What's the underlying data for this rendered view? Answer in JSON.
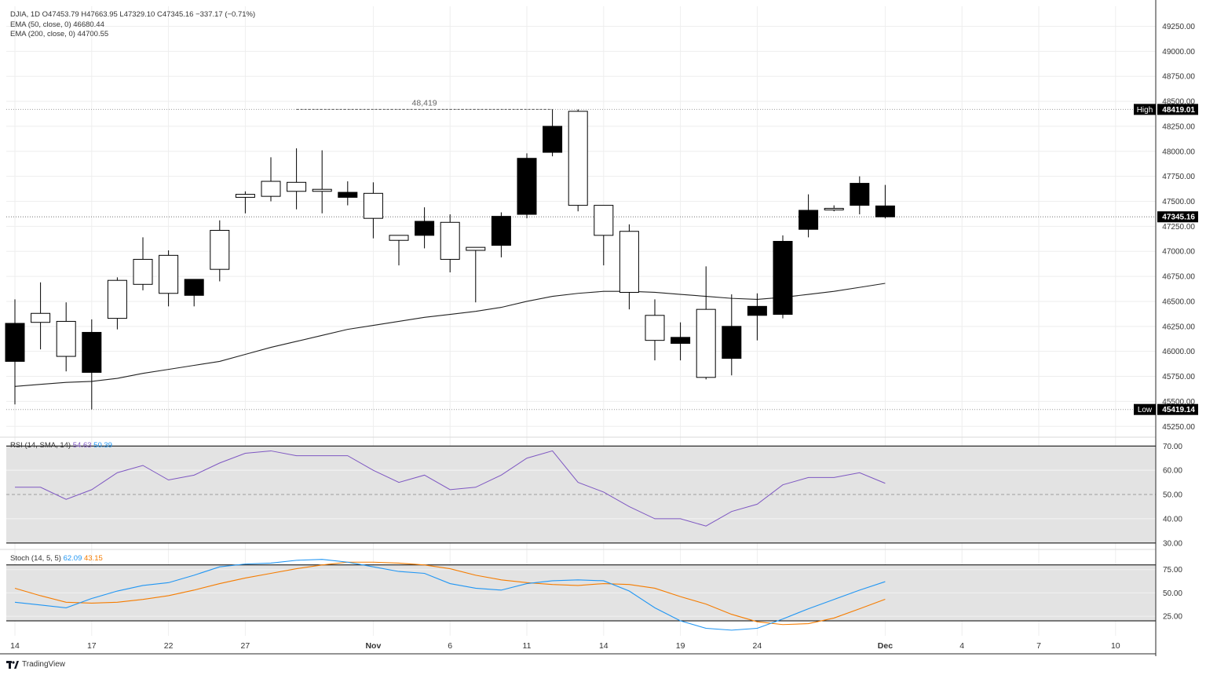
{
  "main_legend": {
    "symbol_line": "DJIA, 1D  O47453.79  H47663.95  L47329.10  C47345.16  −337.17 (−0.71%)",
    "ema50": "EMA (50, close, 0)  46680.44",
    "ema200": "EMA (200, close, 0)  44700.55"
  },
  "price_axis": {
    "ticks": [
      "49250.00",
      "49000.00",
      "48750.00",
      "48500.00",
      "48250.00",
      "48000.00",
      "47750.00",
      "47500.00",
      "47250.00",
      "47000.00",
      "46750.00",
      "46500.00",
      "46250.00",
      "46000.00",
      "45750.00",
      "45500.00",
      "45250.00"
    ],
    "high_label": "High",
    "high_value": "48419.01",
    "low_label": "Low",
    "low_value": "45419.14",
    "last_value": "47345.16",
    "high_marker_text": "48,419"
  },
  "rsi_legend": {
    "name": "RSI (14, SMA, 14)",
    "v1": "54.63",
    "v2": "50.39"
  },
  "rsi_axis": {
    "ticks": [
      "70.00",
      "60.00",
      "50.00",
      "40.00",
      "30.00"
    ]
  },
  "stoch_legend": {
    "name": "Stoch (14, 5, 5)",
    "v1": "62.09",
    "v2": "43.15"
  },
  "stoch_axis": {
    "ticks": [
      "75.00",
      "50.00",
      "25.00"
    ]
  },
  "time_axis": {
    "labels": [
      "14",
      "17",
      "22",
      "27",
      "Nov",
      "6",
      "11",
      "14",
      "19",
      "24",
      "Dec",
      "4",
      "7",
      "10"
    ],
    "positions": [
      0,
      3,
      6,
      9,
      14,
      17,
      20,
      23,
      26,
      29,
      34,
      37,
      40,
      43
    ]
  },
  "brand": "TradingView",
  "colors": {
    "grid": "#eeeeee",
    "candle_up_fill": "#ffffff",
    "candle_down_fill": "#000000",
    "candle_border": "#000000",
    "ema": "#222222",
    "rsi_line": "#7e57c2",
    "rsi_band": "#e3e3e3",
    "stoch_k": "#2196f3",
    "stoch_d": "#f57c00"
  },
  "chart_data": [
    {
      "type": "candlestick",
      "symbol": "DJIA",
      "timeframe": "1D",
      "ylim": [
        45150,
        49450
      ],
      "candles": [
        {
          "o": 46280,
          "h": 46520,
          "l": 45470,
          "c": 45900
        },
        {
          "o": 46290,
          "h": 46690,
          "l": 46020,
          "c": 46380
        },
        {
          "o": 45950,
          "h": 46490,
          "l": 45800,
          "c": 46300
        },
        {
          "o": 46190,
          "h": 46320,
          "l": 45420,
          "c": 45790
        },
        {
          "o": 46330,
          "h": 46740,
          "l": 46220,
          "c": 46710
        },
        {
          "o": 46670,
          "h": 47140,
          "l": 46610,
          "c": 46920
        },
        {
          "o": 46580,
          "h": 47010,
          "l": 46450,
          "c": 46960
        },
        {
          "o": 46720,
          "h": 46720,
          "l": 46450,
          "c": 46560
        },
        {
          "o": 46820,
          "h": 47310,
          "l": 46700,
          "c": 47210
        },
        {
          "o": 47540,
          "h": 47600,
          "l": 47380,
          "c": 47570
        },
        {
          "o": 47550,
          "h": 47940,
          "l": 47500,
          "c": 47700
        },
        {
          "o": 47600,
          "h": 48030,
          "l": 47420,
          "c": 47690
        },
        {
          "o": 47600,
          "h": 48010,
          "l": 47380,
          "c": 47620
        },
        {
          "o": 47590,
          "h": 47700,
          "l": 47460,
          "c": 47540
        },
        {
          "o": 47330,
          "h": 47690,
          "l": 47130,
          "c": 47580
        },
        {
          "o": 47110,
          "h": 47160,
          "l": 46860,
          "c": 47160
        },
        {
          "o": 47300,
          "h": 47440,
          "l": 47030,
          "c": 47160
        },
        {
          "o": 46920,
          "h": 47370,
          "l": 46790,
          "c": 47290
        },
        {
          "o": 47010,
          "h": 47040,
          "l": 46490,
          "c": 47040
        },
        {
          "o": 47350,
          "h": 47390,
          "l": 46940,
          "c": 47060
        },
        {
          "o": 47930,
          "h": 47980,
          "l": 47330,
          "c": 47370
        },
        {
          "o": 48250,
          "h": 48419,
          "l": 47950,
          "c": 47990
        },
        {
          "o": 47460,
          "h": 48419,
          "l": 47400,
          "c": 48400
        },
        {
          "o": 47160,
          "h": 47460,
          "l": 46860,
          "c": 47460
        },
        {
          "o": 46590,
          "h": 47270,
          "l": 46420,
          "c": 47200
        },
        {
          "o": 46110,
          "h": 46520,
          "l": 45910,
          "c": 46360
        },
        {
          "o": 46140,
          "h": 46290,
          "l": 45910,
          "c": 46080
        },
        {
          "o": 45740,
          "h": 46850,
          "l": 45720,
          "c": 46420
        },
        {
          "o": 46250,
          "h": 46570,
          "l": 45760,
          "c": 45930
        },
        {
          "o": 46450,
          "h": 46580,
          "l": 46110,
          "c": 46360
        },
        {
          "o": 47100,
          "h": 47160,
          "l": 46330,
          "c": 46370
        },
        {
          "o": 47410,
          "h": 47570,
          "l": 47140,
          "c": 47220
        },
        {
          "o": 47430,
          "h": 47460,
          "l": 47400,
          "c": 47430
        },
        {
          "o": 47680,
          "h": 47750,
          "l": 47370,
          "c": 47460
        },
        {
          "o": 47454,
          "h": 47664,
          "l": 47329,
          "c": 47345
        }
      ],
      "ema50": [
        45650,
        45670,
        45690,
        45700,
        45730,
        45780,
        45820,
        45860,
        45900,
        45970,
        46040,
        46100,
        46160,
        46220,
        46260,
        46300,
        46340,
        46370,
        46400,
        46440,
        46500,
        46550,
        46580,
        46600,
        46600,
        46590,
        46570,
        46550,
        46530,
        46520,
        46540,
        46570,
        46600,
        46640,
        46680
      ],
      "high": 48419.01,
      "low": 45419.14,
      "last": 47345.16
    },
    {
      "type": "line",
      "title": "RSI (14, SMA, 14)",
      "ylim": [
        28,
        73
      ],
      "bands": [
        30,
        70
      ],
      "midline": 50,
      "values": [
        53,
        53,
        48,
        52,
        59,
        62,
        56,
        58,
        63,
        67,
        68,
        66,
        66,
        66,
        60,
        55,
        58,
        52,
        53,
        58,
        65,
        68,
        55,
        51,
        45,
        40,
        40,
        37,
        43,
        46,
        54,
        57,
        57,
        59,
        54.63
      ]
    },
    {
      "type": "line",
      "title": "Stoch (14, 5, 5)",
      "ylim": [
        4,
        95
      ],
      "bands": [
        20,
        80
      ],
      "series": [
        {
          "name": "K",
          "values": [
            40,
            37,
            34,
            44,
            52,
            58,
            61,
            69,
            78,
            81,
            82,
            85,
            86,
            83,
            78,
            73,
            71,
            60,
            55,
            53,
            60,
            63,
            64,
            63,
            52,
            34,
            20,
            12,
            10,
            12,
            22,
            33,
            43,
            53,
            62.09
          ]
        },
        {
          "name": "D",
          "values": [
            55,
            47,
            40,
            39,
            40,
            43,
            47,
            53,
            60,
            66,
            71,
            76,
            80,
            83,
            83,
            82,
            80,
            76,
            69,
            64,
            61,
            59,
            58,
            60,
            59,
            55,
            46,
            38,
            27,
            19,
            16,
            17,
            23,
            33,
            43.15
          ]
        }
      ]
    }
  ]
}
